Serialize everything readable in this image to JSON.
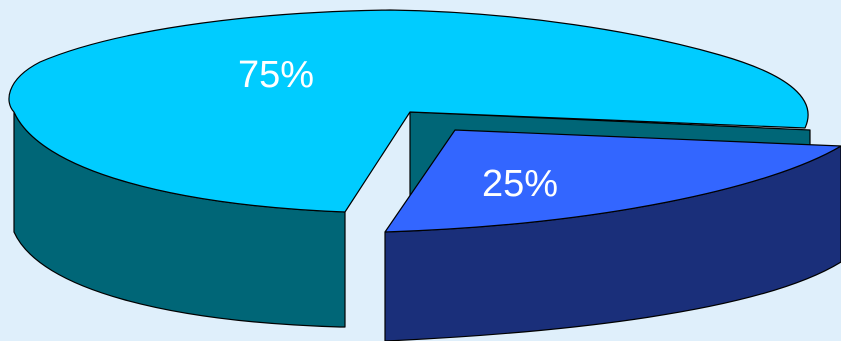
{
  "chart_data": {
    "type": "pie",
    "style": "3d-exploded",
    "categories": [
      "",
      ""
    ],
    "values": [
      75,
      25
    ],
    "labels": [
      "75%",
      "25%"
    ],
    "colors": {
      "slice_1_top": "#00ccff",
      "slice_1_side": "#006677",
      "slice_2_top": "#3366ff",
      "slice_2_side": "#1a2f7a",
      "outline": "#000000",
      "background": "#dfeffb"
    },
    "legend": "none"
  }
}
